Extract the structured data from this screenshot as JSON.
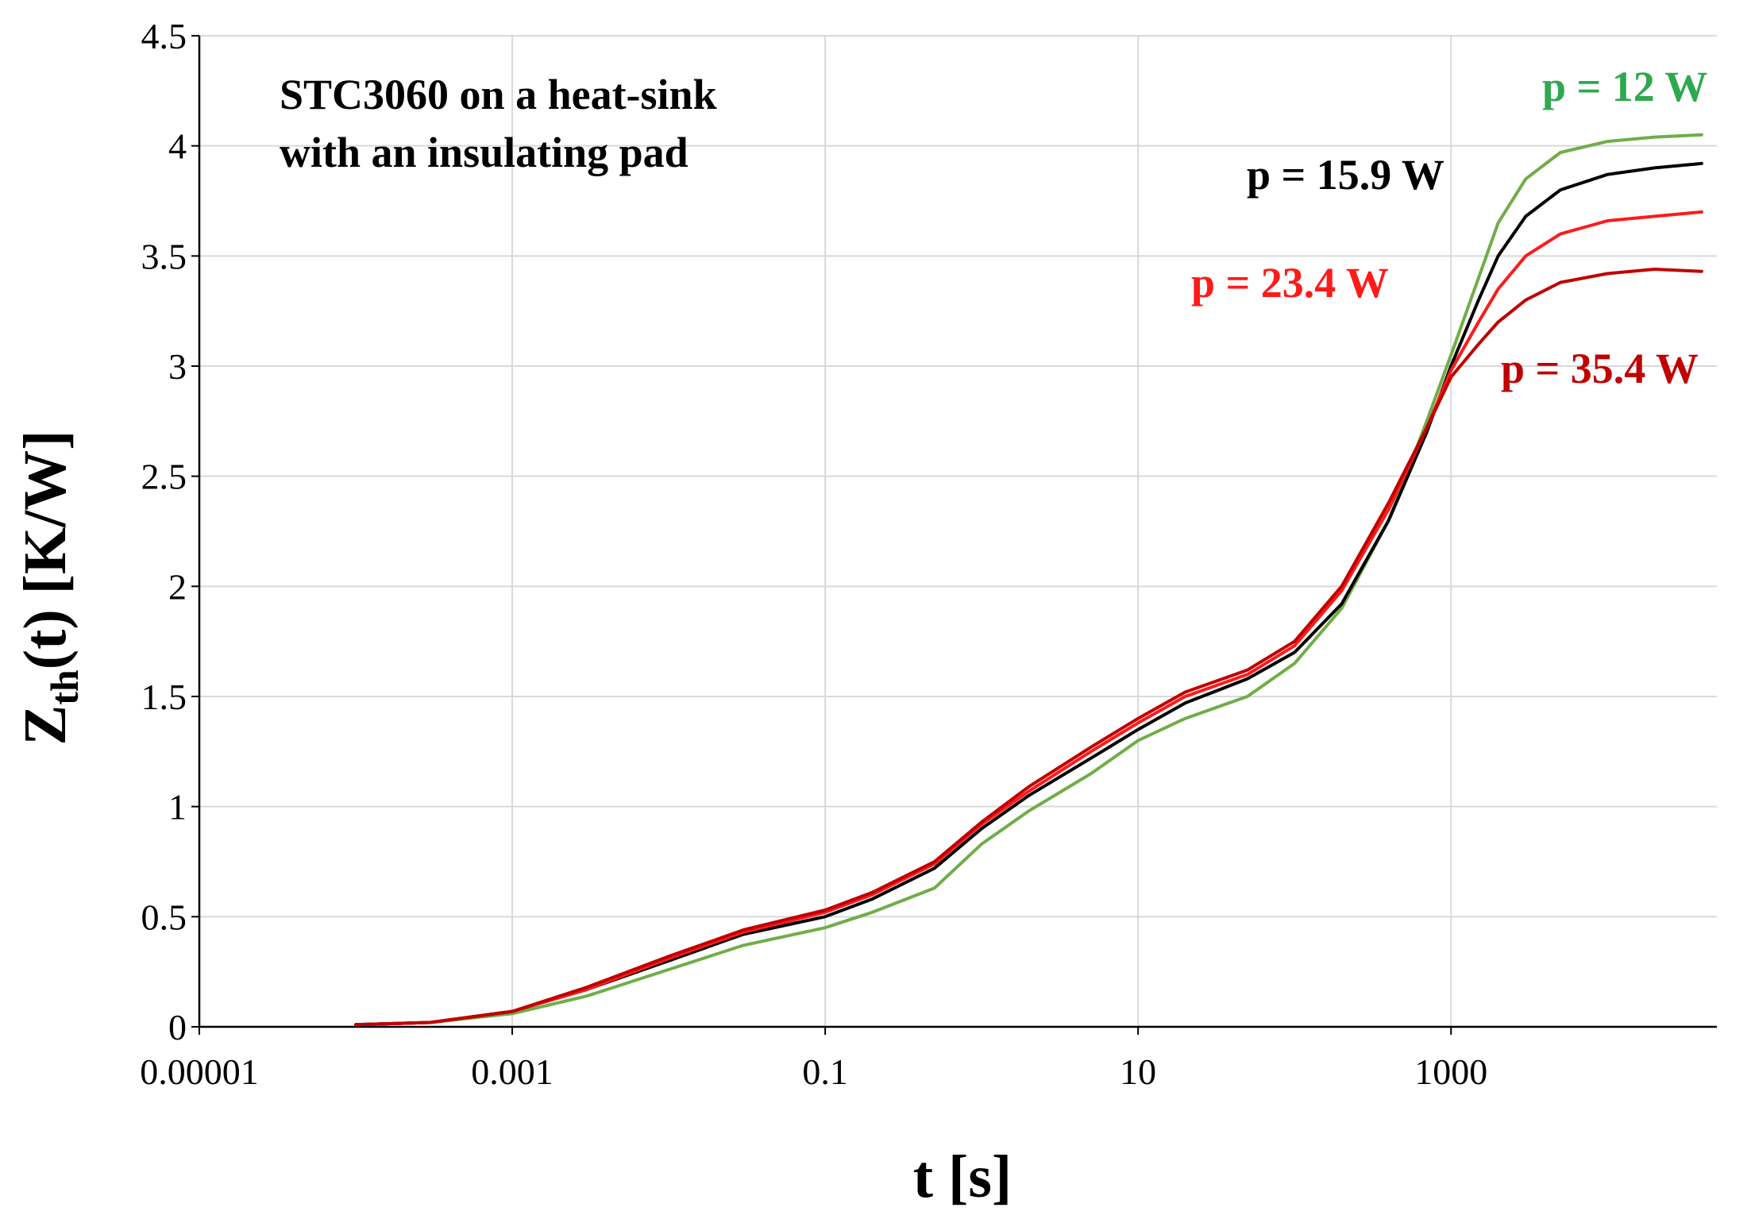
{
  "chart_data": {
    "type": "line",
    "title": "",
    "annotation_lines": [
      "STC3060 on a heat-sink",
      "with an insulating pad"
    ],
    "xlabel": "t [s]",
    "ylabel_main": "Z",
    "ylabel_sub": "th",
    "ylabel_rest": "(t) [K/W]",
    "xscale": "log",
    "xlim": [
      1e-05,
      50000
    ],
    "ylim": [
      0,
      4.5
    ],
    "x_ticks": [
      1e-05,
      0.001,
      0.1,
      10,
      1000
    ],
    "x_tick_labels": [
      "0.00001",
      "0.001",
      "0.1",
      "10",
      "1000"
    ],
    "y_ticks": [
      0,
      0.5,
      1,
      1.5,
      2,
      2.5,
      3,
      3.5,
      4,
      4.5
    ],
    "y_tick_labels": [
      "0",
      "0.5",
      "1",
      "1.5",
      "2",
      "2.5",
      "3",
      "3.5",
      "4",
      "4.5"
    ],
    "grid": true,
    "series": [
      {
        "name": "p = 12 W",
        "color": "#70ad47",
        "label_color": "#2fa84f",
        "x": [
          0.0001,
          0.0003,
          0.001,
          0.003,
          0.01,
          0.03,
          0.1,
          0.2,
          0.5,
          1,
          2,
          5,
          10,
          20,
          50,
          100,
          200,
          400,
          700,
          1000,
          1500,
          2000,
          3000,
          5000,
          10000,
          20000,
          40000
        ],
        "y": [
          0.01,
          0.02,
          0.06,
          0.14,
          0.26,
          0.37,
          0.45,
          0.52,
          0.63,
          0.83,
          0.98,
          1.15,
          1.3,
          1.4,
          1.5,
          1.65,
          1.9,
          2.3,
          2.75,
          3.05,
          3.4,
          3.65,
          3.85,
          3.97,
          4.02,
          4.04,
          4.05
        ]
      },
      {
        "name": "p = 15.9 W",
        "color": "#000000",
        "label_color": "#000000",
        "x": [
          0.0001,
          0.0003,
          0.001,
          0.003,
          0.01,
          0.03,
          0.1,
          0.2,
          0.5,
          1,
          2,
          5,
          10,
          20,
          50,
          100,
          200,
          400,
          700,
          1000,
          1500,
          2000,
          3000,
          5000,
          10000,
          20000,
          40000
        ],
        "y": [
          0.01,
          0.02,
          0.07,
          0.17,
          0.3,
          0.42,
          0.5,
          0.58,
          0.72,
          0.9,
          1.05,
          1.22,
          1.35,
          1.47,
          1.58,
          1.7,
          1.92,
          2.3,
          2.7,
          3.0,
          3.3,
          3.5,
          3.68,
          3.8,
          3.87,
          3.9,
          3.92
        ]
      },
      {
        "name": "p = 23.4 W",
        "color": "#ff1a1a",
        "label_color": "#ff1a1a",
        "x": [
          0.0001,
          0.0003,
          0.001,
          0.003,
          0.01,
          0.03,
          0.1,
          0.2,
          0.5,
          1,
          2,
          5,
          10,
          20,
          50,
          100,
          200,
          400,
          700,
          1000,
          1500,
          2000,
          3000,
          5000,
          10000,
          20000,
          40000
        ],
        "y": [
          0.01,
          0.02,
          0.07,
          0.17,
          0.31,
          0.43,
          0.52,
          0.6,
          0.74,
          0.92,
          1.07,
          1.25,
          1.38,
          1.5,
          1.6,
          1.73,
          1.98,
          2.35,
          2.72,
          2.98,
          3.2,
          3.35,
          3.5,
          3.6,
          3.66,
          3.68,
          3.7
        ]
      },
      {
        "name": "p = 35.4 W",
        "color": "#c00000",
        "label_color": "#c00000",
        "x": [
          0.0001,
          0.0003,
          0.001,
          0.003,
          0.01,
          0.03,
          0.1,
          0.2,
          0.5,
          1,
          2,
          5,
          10,
          20,
          50,
          100,
          200,
          400,
          700,
          1000,
          1500,
          2000,
          3000,
          5000,
          10000,
          20000,
          40000
        ],
        "y": [
          0.01,
          0.02,
          0.07,
          0.18,
          0.32,
          0.44,
          0.53,
          0.61,
          0.75,
          0.93,
          1.09,
          1.27,
          1.4,
          1.52,
          1.62,
          1.75,
          2.0,
          2.38,
          2.72,
          2.95,
          3.1,
          3.2,
          3.3,
          3.38,
          3.42,
          3.44,
          3.43
        ]
      }
    ]
  }
}
